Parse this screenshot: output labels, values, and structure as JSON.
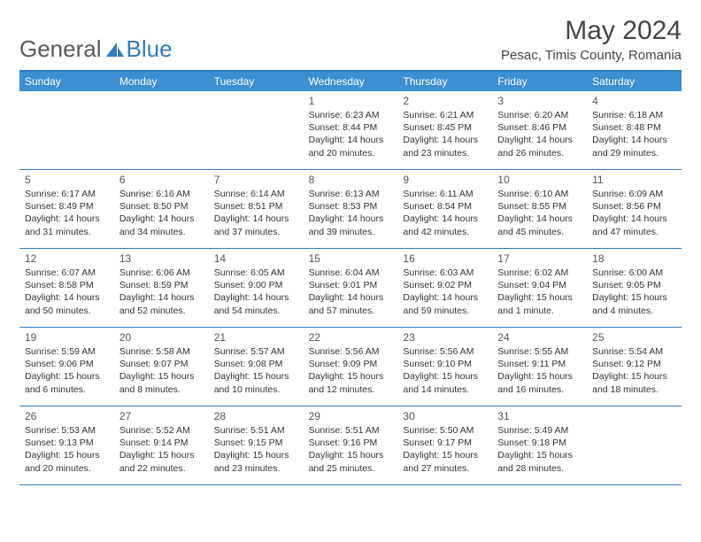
{
  "brand": {
    "part1": "General",
    "part2": "Blue"
  },
  "title": "May 2024",
  "location": "Pesac, Timis County, Romania",
  "colors": {
    "header_bg": "#3c8fd1",
    "border": "#2f7bbf",
    "text": "#333333",
    "brand_gray": "#5a5a5a",
    "brand_blue": "#2f7bbf"
  },
  "day_names": [
    "Sunday",
    "Monday",
    "Tuesday",
    "Wednesday",
    "Thursday",
    "Friday",
    "Saturday"
  ],
  "weeks": [
    [
      null,
      null,
      null,
      {
        "n": "1",
        "sr": "Sunrise: 6:23 AM",
        "ss": "Sunset: 8:44 PM",
        "d1": "Daylight: 14 hours",
        "d2": "and 20 minutes."
      },
      {
        "n": "2",
        "sr": "Sunrise: 6:21 AM",
        "ss": "Sunset: 8:45 PM",
        "d1": "Daylight: 14 hours",
        "d2": "and 23 minutes."
      },
      {
        "n": "3",
        "sr": "Sunrise: 6:20 AM",
        "ss": "Sunset: 8:46 PM",
        "d1": "Daylight: 14 hours",
        "d2": "and 26 minutes."
      },
      {
        "n": "4",
        "sr": "Sunrise: 6:18 AM",
        "ss": "Sunset: 8:48 PM",
        "d1": "Daylight: 14 hours",
        "d2": "and 29 minutes."
      }
    ],
    [
      {
        "n": "5",
        "sr": "Sunrise: 6:17 AM",
        "ss": "Sunset: 8:49 PM",
        "d1": "Daylight: 14 hours",
        "d2": "and 31 minutes."
      },
      {
        "n": "6",
        "sr": "Sunrise: 6:16 AM",
        "ss": "Sunset: 8:50 PM",
        "d1": "Daylight: 14 hours",
        "d2": "and 34 minutes."
      },
      {
        "n": "7",
        "sr": "Sunrise: 6:14 AM",
        "ss": "Sunset: 8:51 PM",
        "d1": "Daylight: 14 hours",
        "d2": "and 37 minutes."
      },
      {
        "n": "8",
        "sr": "Sunrise: 6:13 AM",
        "ss": "Sunset: 8:53 PM",
        "d1": "Daylight: 14 hours",
        "d2": "and 39 minutes."
      },
      {
        "n": "9",
        "sr": "Sunrise: 6:11 AM",
        "ss": "Sunset: 8:54 PM",
        "d1": "Daylight: 14 hours",
        "d2": "and 42 minutes."
      },
      {
        "n": "10",
        "sr": "Sunrise: 6:10 AM",
        "ss": "Sunset: 8:55 PM",
        "d1": "Daylight: 14 hours",
        "d2": "and 45 minutes."
      },
      {
        "n": "11",
        "sr": "Sunrise: 6:09 AM",
        "ss": "Sunset: 8:56 PM",
        "d1": "Daylight: 14 hours",
        "d2": "and 47 minutes."
      }
    ],
    [
      {
        "n": "12",
        "sr": "Sunrise: 6:07 AM",
        "ss": "Sunset: 8:58 PM",
        "d1": "Daylight: 14 hours",
        "d2": "and 50 minutes."
      },
      {
        "n": "13",
        "sr": "Sunrise: 6:06 AM",
        "ss": "Sunset: 8:59 PM",
        "d1": "Daylight: 14 hours",
        "d2": "and 52 minutes."
      },
      {
        "n": "14",
        "sr": "Sunrise: 6:05 AM",
        "ss": "Sunset: 9:00 PM",
        "d1": "Daylight: 14 hours",
        "d2": "and 54 minutes."
      },
      {
        "n": "15",
        "sr": "Sunrise: 6:04 AM",
        "ss": "Sunset: 9:01 PM",
        "d1": "Daylight: 14 hours",
        "d2": "and 57 minutes."
      },
      {
        "n": "16",
        "sr": "Sunrise: 6:03 AM",
        "ss": "Sunset: 9:02 PM",
        "d1": "Daylight: 14 hours",
        "d2": "and 59 minutes."
      },
      {
        "n": "17",
        "sr": "Sunrise: 6:02 AM",
        "ss": "Sunset: 9:04 PM",
        "d1": "Daylight: 15 hours",
        "d2": "and 1 minute."
      },
      {
        "n": "18",
        "sr": "Sunrise: 6:00 AM",
        "ss": "Sunset: 9:05 PM",
        "d1": "Daylight: 15 hours",
        "d2": "and 4 minutes."
      }
    ],
    [
      {
        "n": "19",
        "sr": "Sunrise: 5:59 AM",
        "ss": "Sunset: 9:06 PM",
        "d1": "Daylight: 15 hours",
        "d2": "and 6 minutes."
      },
      {
        "n": "20",
        "sr": "Sunrise: 5:58 AM",
        "ss": "Sunset: 9:07 PM",
        "d1": "Daylight: 15 hours",
        "d2": "and 8 minutes."
      },
      {
        "n": "21",
        "sr": "Sunrise: 5:57 AM",
        "ss": "Sunset: 9:08 PM",
        "d1": "Daylight: 15 hours",
        "d2": "and 10 minutes."
      },
      {
        "n": "22",
        "sr": "Sunrise: 5:56 AM",
        "ss": "Sunset: 9:09 PM",
        "d1": "Daylight: 15 hours",
        "d2": "and 12 minutes."
      },
      {
        "n": "23",
        "sr": "Sunrise: 5:56 AM",
        "ss": "Sunset: 9:10 PM",
        "d1": "Daylight: 15 hours",
        "d2": "and 14 minutes."
      },
      {
        "n": "24",
        "sr": "Sunrise: 5:55 AM",
        "ss": "Sunset: 9:11 PM",
        "d1": "Daylight: 15 hours",
        "d2": "and 16 minutes."
      },
      {
        "n": "25",
        "sr": "Sunrise: 5:54 AM",
        "ss": "Sunset: 9:12 PM",
        "d1": "Daylight: 15 hours",
        "d2": "and 18 minutes."
      }
    ],
    [
      {
        "n": "26",
        "sr": "Sunrise: 5:53 AM",
        "ss": "Sunset: 9:13 PM",
        "d1": "Daylight: 15 hours",
        "d2": "and 20 minutes."
      },
      {
        "n": "27",
        "sr": "Sunrise: 5:52 AM",
        "ss": "Sunset: 9:14 PM",
        "d1": "Daylight: 15 hours",
        "d2": "and 22 minutes."
      },
      {
        "n": "28",
        "sr": "Sunrise: 5:51 AM",
        "ss": "Sunset: 9:15 PM",
        "d1": "Daylight: 15 hours",
        "d2": "and 23 minutes."
      },
      {
        "n": "29",
        "sr": "Sunrise: 5:51 AM",
        "ss": "Sunset: 9:16 PM",
        "d1": "Daylight: 15 hours",
        "d2": "and 25 minutes."
      },
      {
        "n": "30",
        "sr": "Sunrise: 5:50 AM",
        "ss": "Sunset: 9:17 PM",
        "d1": "Daylight: 15 hours",
        "d2": "and 27 minutes."
      },
      {
        "n": "31",
        "sr": "Sunrise: 5:49 AM",
        "ss": "Sunset: 9:18 PM",
        "d1": "Daylight: 15 hours",
        "d2": "and 28 minutes."
      },
      null
    ]
  ]
}
